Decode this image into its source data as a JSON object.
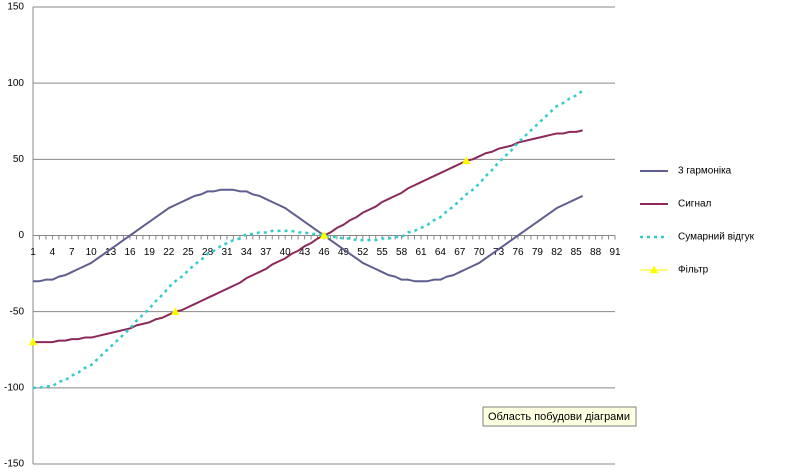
{
  "chart_data": {
    "type": "line",
    "categories": [
      1,
      null,
      null,
      4,
      null,
      null,
      7,
      null,
      null,
      10,
      null,
      null,
      13,
      null,
      null,
      16,
      null,
      null,
      19,
      null,
      null,
      22,
      null,
      null,
      25,
      null,
      null,
      28,
      null,
      null,
      31,
      null,
      null,
      34,
      null,
      null,
      37,
      null,
      null,
      40,
      null,
      null,
      43,
      null,
      null,
      46,
      null,
      null,
      49,
      null,
      null,
      52,
      null,
      null,
      55,
      null,
      null,
      58,
      null,
      null,
      61,
      null,
      null,
      64,
      null,
      null,
      67,
      null,
      null,
      70,
      null,
      null,
      73,
      null,
      null,
      76,
      null,
      null,
      79,
      null,
      null,
      82,
      null,
      null,
      85,
      null,
      null,
      88,
      null,
      null,
      91
    ],
    "series": [
      {
        "name": "3 гармоніка",
        "color": "#5f5f8f",
        "line_style": "solid",
        "marker": "none",
        "values": [
          -30,
          -30,
          -29,
          -29,
          -27,
          -26,
          -24,
          -22,
          -20,
          -18,
          -15,
          -12,
          -9,
          -6,
          -3,
          0,
          3,
          6,
          9,
          12,
          15,
          18,
          20,
          22,
          24,
          26,
          27,
          29,
          29,
          30,
          30,
          30,
          29,
          29,
          27,
          26,
          24,
          22,
          20,
          18,
          15,
          12,
          9,
          6,
          3,
          0,
          -3,
          -6,
          -9,
          -12,
          -15,
          -18,
          -20,
          -22,
          -24,
          -26,
          -27,
          -29,
          -29,
          -30,
          -30,
          -30,
          -29,
          -29,
          -27,
          -26,
          -24,
          -22,
          -20,
          -18,
          -15,
          -12,
          -9,
          -6,
          -3,
          0,
          3,
          6,
          9,
          12,
          15,
          18,
          20,
          22,
          24,
          26,
          null,
          null,
          null,
          null,
          null
        ]
      },
      {
        "name": "Сигнал",
        "color": "#8b2a5a",
        "line_style": "solid",
        "marker": "none",
        "values": [
          -70,
          -70,
          -70,
          -70,
          -69,
          -69,
          -68,
          -68,
          -67,
          -67,
          -66,
          -65,
          -64,
          -63,
          -62,
          -61,
          -59,
          -58,
          -57,
          -55,
          -54,
          -52,
          -50,
          -49,
          -47,
          -45,
          -43,
          -41,
          -39,
          -37,
          -35,
          -33,
          -31,
          -28,
          -26,
          -24,
          -22,
          -19,
          -17,
          -15,
          -12,
          -10,
          -7,
          -5,
          -2,
          0,
          2,
          5,
          7,
          10,
          12,
          15,
          17,
          19,
          22,
          24,
          26,
          28,
          31,
          33,
          35,
          37,
          39,
          41,
          43,
          45,
          47,
          49,
          50,
          52,
          54,
          55,
          57,
          58,
          59,
          61,
          62,
          63,
          64,
          65,
          66,
          67,
          67,
          68,
          68,
          69,
          null,
          null,
          null,
          null,
          null
        ]
      },
      {
        "name": "Сумарний відгук",
        "color": "#33cccc",
        "line_style": "dotted",
        "marker": "none",
        "values": [
          -100,
          -100,
          -99,
          -99,
          -96,
          -95,
          -92,
          -90,
          -87,
          -85,
          -81,
          -77,
          -73,
          -69,
          -65,
          -61,
          -56,
          -52,
          -48,
          -43,
          -39,
          -34,
          -30,
          -27,
          -23,
          -19,
          -16,
          -12,
          -10,
          -7,
          -5,
          -3,
          -2,
          1,
          1,
          2,
          2,
          3,
          3,
          3,
          3,
          2,
          2,
          1,
          1,
          0,
          -1,
          -1,
          -2,
          -2,
          -3,
          -3,
          -3,
          -3,
          -2,
          -2,
          -1,
          -1,
          2,
          3,
          5,
          7,
          10,
          12,
          16,
          19,
          23,
          27,
          30,
          34,
          39,
          43,
          48,
          52,
          56,
          61,
          65,
          69,
          73,
          77,
          81,
          85,
          87,
          90,
          92,
          95,
          null,
          null,
          null,
          null,
          null
        ]
      },
      {
        "name": "Фільтр",
        "color": "#ffff00",
        "line_style": "none",
        "marker": "triangle",
        "values": [
          -70,
          null,
          null,
          null,
          null,
          null,
          null,
          null,
          null,
          null,
          null,
          null,
          null,
          null,
          null,
          null,
          null,
          null,
          null,
          null,
          null,
          null,
          -50,
          null,
          null,
          null,
          null,
          null,
          null,
          null,
          null,
          null,
          null,
          null,
          null,
          null,
          null,
          null,
          null,
          null,
          null,
          null,
          null,
          null,
          null,
          0,
          null,
          null,
          null,
          null,
          null,
          null,
          null,
          null,
          null,
          null,
          null,
          null,
          null,
          null,
          null,
          null,
          null,
          null,
          null,
          null,
          null,
          49,
          null,
          null,
          null,
          null,
          null,
          null,
          null,
          null,
          null,
          null,
          null,
          null,
          null,
          null,
          null,
          null,
          null,
          null,
          null,
          null,
          null,
          null,
          null
        ]
      }
    ],
    "ylim": [
      -150,
      150
    ],
    "yticks": [
      -150,
      -100,
      -50,
      0,
      50,
      100,
      150
    ],
    "grid": true,
    "legend": "right",
    "tooltip": "Область побудови діаграми"
  }
}
